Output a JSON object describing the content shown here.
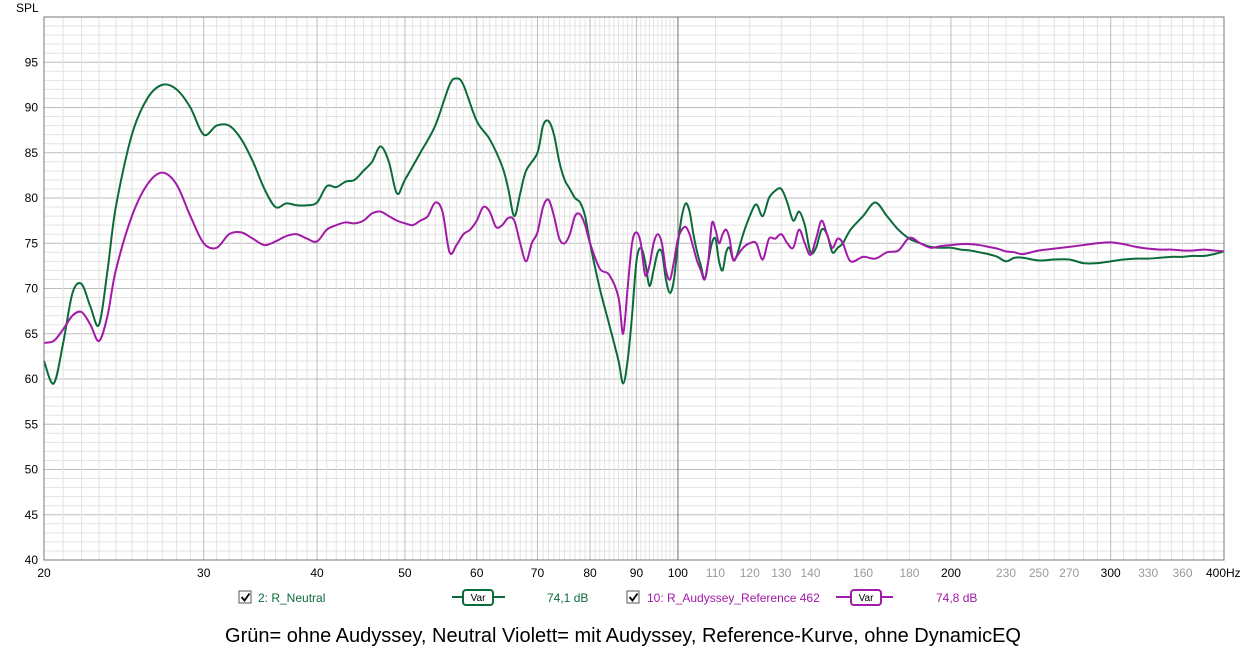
{
  "chart_data": {
    "type": "line",
    "ylabel": "SPL",
    "ylim": [
      40,
      100
    ],
    "y_ticks": [
      40,
      45,
      50,
      55,
      60,
      65,
      70,
      75,
      80,
      85,
      90,
      95
    ],
    "xlim": [
      20,
      400
    ],
    "x_scale": "log",
    "x_unit": "Hz",
    "x_ticks": [
      {
        "v": 20,
        "label": "20",
        "major": true
      },
      {
        "v": 30,
        "label": "30",
        "major": true
      },
      {
        "v": 40,
        "label": "40",
        "major": true
      },
      {
        "v": 50,
        "label": "50",
        "major": true
      },
      {
        "v": 60,
        "label": "60",
        "major": true
      },
      {
        "v": 70,
        "label": "70",
        "major": true
      },
      {
        "v": 80,
        "label": "80",
        "major": true
      },
      {
        "v": 90,
        "label": "90",
        "major": true
      },
      {
        "v": 100,
        "label": "100",
        "major": true
      },
      {
        "v": 110,
        "label": "110",
        "major": false
      },
      {
        "v": 120,
        "label": "120",
        "major": false
      },
      {
        "v": 130,
        "label": "130",
        "major": false
      },
      {
        "v": 140,
        "label": "140",
        "major": false
      },
      {
        "v": 160,
        "label": "160",
        "major": false
      },
      {
        "v": 180,
        "label": "180",
        "major": false
      },
      {
        "v": 200,
        "label": "200",
        "major": true
      },
      {
        "v": 230,
        "label": "230",
        "major": false
      },
      {
        "v": 250,
        "label": "250",
        "major": false
      },
      {
        "v": 270,
        "label": "270",
        "major": false
      },
      {
        "v": 300,
        "label": "300",
        "major": true
      },
      {
        "v": 330,
        "label": "330",
        "major": false
      },
      {
        "v": 360,
        "label": "360",
        "major": false
      },
      {
        "v": 400,
        "label": "400",
        "major": true
      }
    ],
    "cursor_x": 100,
    "grid": true,
    "series": [
      {
        "name": "2: R_Neutral",
        "color": "#0b6b3a",
        "points": [
          [
            20,
            62
          ],
          [
            20.5,
            59.5
          ],
          [
            21,
            64
          ],
          [
            21.5,
            69.5
          ],
          [
            22,
            70.5
          ],
          [
            22.5,
            68
          ],
          [
            23,
            66
          ],
          [
            23.5,
            72
          ],
          [
            24,
            79
          ],
          [
            25,
            87
          ],
          [
            26,
            91
          ],
          [
            27,
            92.5
          ],
          [
            28,
            92
          ],
          [
            29,
            90
          ],
          [
            30,
            87
          ],
          [
            31,
            88
          ],
          [
            32,
            88
          ],
          [
            33,
            86.5
          ],
          [
            34,
            84
          ],
          [
            35,
            81
          ],
          [
            36,
            79
          ],
          [
            37,
            79.4
          ],
          [
            38,
            79.2
          ],
          [
            39,
            79.2
          ],
          [
            40,
            79.5
          ],
          [
            41,
            81.3
          ],
          [
            42,
            81.2
          ],
          [
            43,
            81.8
          ],
          [
            44,
            82
          ],
          [
            45,
            83
          ],
          [
            46,
            84
          ],
          [
            47,
            85.7
          ],
          [
            48,
            84
          ],
          [
            49,
            80.5
          ],
          [
            50,
            82
          ],
          [
            52,
            85
          ],
          [
            54,
            88
          ],
          [
            56,
            92.5
          ],
          [
            57,
            93.2
          ],
          [
            58,
            92.5
          ],
          [
            60,
            88.5
          ],
          [
            62,
            86.5
          ],
          [
            64,
            83.5
          ],
          [
            65,
            81
          ],
          [
            66,
            78
          ],
          [
            67,
            80.5
          ],
          [
            68,
            83
          ],
          [
            70,
            85
          ],
          [
            71,
            88
          ],
          [
            72,
            88.5
          ],
          [
            73,
            87
          ],
          [
            74,
            84
          ],
          [
            75,
            82
          ],
          [
            76,
            81
          ],
          [
            77,
            80
          ],
          [
            78,
            79.5
          ],
          [
            79,
            78
          ],
          [
            80,
            75
          ],
          [
            82,
            70
          ],
          [
            84,
            66
          ],
          [
            86,
            62
          ],
          [
            87,
            59.5
          ],
          [
            88,
            62
          ],
          [
            89,
            67
          ],
          [
            90,
            73
          ],
          [
            91,
            74.5
          ],
          [
            92,
            73
          ],
          [
            93,
            70.3
          ],
          [
            94,
            72
          ],
          [
            95,
            74
          ],
          [
            96,
            74
          ],
          [
            97,
            71
          ],
          [
            98,
            69.5
          ],
          [
            99,
            71
          ],
          [
            100,
            75
          ],
          [
            101,
            78
          ],
          [
            102,
            79.4
          ],
          [
            103,
            78.5
          ],
          [
            104,
            76
          ],
          [
            105,
            74
          ],
          [
            106,
            72.5
          ],
          [
            107,
            71
          ],
          [
            108,
            73
          ],
          [
            109,
            75
          ],
          [
            110,
            75.5
          ],
          [
            111,
            73
          ],
          [
            112,
            72
          ],
          [
            113,
            74
          ],
          [
            114,
            74.5
          ],
          [
            115,
            73.2
          ],
          [
            116,
            73.5
          ],
          [
            118,
            76
          ],
          [
            120,
            78
          ],
          [
            122,
            79.3
          ],
          [
            124,
            78
          ],
          [
            126,
            80
          ],
          [
            128,
            80.8
          ],
          [
            130,
            81
          ],
          [
            132,
            79.5
          ],
          [
            134,
            77.5
          ],
          [
            136,
            78.5
          ],
          [
            138,
            77
          ],
          [
            140,
            74
          ],
          [
            142,
            74.5
          ],
          [
            144,
            76.5
          ],
          [
            146,
            76
          ],
          [
            148,
            74
          ],
          [
            150,
            74.5
          ],
          [
            152,
            75
          ],
          [
            155,
            76.5
          ],
          [
            160,
            78
          ],
          [
            165,
            79.5
          ],
          [
            170,
            78
          ],
          [
            175,
            76.5
          ],
          [
            180,
            75.5
          ],
          [
            185,
            75
          ],
          [
            190,
            74.6
          ],
          [
            195,
            74.5
          ],
          [
            200,
            74.5
          ],
          [
            205,
            74.3
          ],
          [
            210,
            74.2
          ],
          [
            215,
            74
          ],
          [
            220,
            73.8
          ],
          [
            225,
            73.5
          ],
          [
            230,
            73
          ],
          [
            235,
            73.4
          ],
          [
            240,
            73.4
          ],
          [
            250,
            73.1
          ],
          [
            260,
            73.2
          ],
          [
            270,
            73.2
          ],
          [
            280,
            72.8
          ],
          [
            290,
            72.8
          ],
          [
            300,
            73
          ],
          [
            310,
            73.2
          ],
          [
            320,
            73.3
          ],
          [
            330,
            73.3
          ],
          [
            340,
            73.4
          ],
          [
            350,
            73.5
          ],
          [
            360,
            73.5
          ],
          [
            370,
            73.6
          ],
          [
            380,
            73.6
          ],
          [
            390,
            73.8
          ],
          [
            400,
            74.1
          ]
        ]
      },
      {
        "name": "10: R_Audyssey_Reference 462",
        "color": "#a21aa8",
        "points": [
          [
            20,
            64
          ],
          [
            20.5,
            64.2
          ],
          [
            21,
            65.5
          ],
          [
            21.5,
            67
          ],
          [
            22,
            67.4
          ],
          [
            22.5,
            66
          ],
          [
            23,
            64.2
          ],
          [
            23.5,
            67
          ],
          [
            24,
            72
          ],
          [
            25,
            78
          ],
          [
            26,
            81.5
          ],
          [
            27,
            82.8
          ],
          [
            28,
            81.5
          ],
          [
            29,
            78
          ],
          [
            30,
            75
          ],
          [
            31,
            74.5
          ],
          [
            32,
            76
          ],
          [
            33,
            76.2
          ],
          [
            34,
            75.5
          ],
          [
            35,
            74.8
          ],
          [
            36,
            75.2
          ],
          [
            37,
            75.8
          ],
          [
            38,
            76
          ],
          [
            39,
            75.5
          ],
          [
            40,
            75.2
          ],
          [
            41,
            76.5
          ],
          [
            42,
            77
          ],
          [
            43,
            77.3
          ],
          [
            44,
            77.2
          ],
          [
            45,
            77.5
          ],
          [
            46,
            78.3
          ],
          [
            47,
            78.5
          ],
          [
            48,
            78
          ],
          [
            49,
            77.5
          ],
          [
            50,
            77.2
          ],
          [
            51,
            77
          ],
          [
            52,
            77.5
          ],
          [
            53,
            78
          ],
          [
            54,
            79.5
          ],
          [
            55,
            78.5
          ],
          [
            56,
            74
          ],
          [
            57,
            74.8
          ],
          [
            58,
            76
          ],
          [
            59,
            76.5
          ],
          [
            60,
            77.5
          ],
          [
            61,
            79
          ],
          [
            62,
            78.5
          ],
          [
            63,
            76.8
          ],
          [
            64,
            77
          ],
          [
            65,
            77.8
          ],
          [
            66,
            77.5
          ],
          [
            67,
            75
          ],
          [
            68,
            73
          ],
          [
            69,
            75
          ],
          [
            70,
            76.2
          ],
          [
            71,
            79
          ],
          [
            72,
            79.8
          ],
          [
            73,
            78
          ],
          [
            74,
            75.5
          ],
          [
            75,
            75
          ],
          [
            76,
            76
          ],
          [
            77,
            78
          ],
          [
            78,
            78.2
          ],
          [
            79,
            77
          ],
          [
            80,
            75
          ],
          [
            82,
            72.2
          ],
          [
            84,
            71.5
          ],
          [
            86,
            69
          ],
          [
            87,
            65
          ],
          [
            88,
            70
          ],
          [
            89,
            75
          ],
          [
            90,
            76.2
          ],
          [
            91,
            75
          ],
          [
            92,
            71.5
          ],
          [
            93,
            72.5
          ],
          [
            94,
            75
          ],
          [
            95,
            76
          ],
          [
            96,
            75
          ],
          [
            97,
            72
          ],
          [
            98,
            71
          ],
          [
            99,
            73
          ],
          [
            100,
            75.5
          ],
          [
            101,
            76.5
          ],
          [
            102,
            76.8
          ],
          [
            103,
            76
          ],
          [
            104,
            74.5
          ],
          [
            105,
            73
          ],
          [
            106,
            72
          ],
          [
            107,
            71
          ],
          [
            108,
            73
          ],
          [
            109,
            77.2
          ],
          [
            110,
            76.5
          ],
          [
            111,
            75
          ],
          [
            112,
            76
          ],
          [
            113,
            76.5
          ],
          [
            114,
            75.5
          ],
          [
            115,
            73.2
          ],
          [
            116,
            73.5
          ],
          [
            118,
            74.5
          ],
          [
            120,
            75
          ],
          [
            122,
            75
          ],
          [
            124,
            73.2
          ],
          [
            126,
            75.5
          ],
          [
            128,
            75.5
          ],
          [
            130,
            76
          ],
          [
            132,
            75
          ],
          [
            134,
            74.5
          ],
          [
            136,
            76.5
          ],
          [
            138,
            75
          ],
          [
            140,
            73.7
          ],
          [
            142,
            75.5
          ],
          [
            144,
            77.5
          ],
          [
            146,
            76
          ],
          [
            148,
            74.5
          ],
          [
            150,
            75.5
          ],
          [
            152,
            75
          ],
          [
            155,
            73
          ],
          [
            160,
            73.5
          ],
          [
            165,
            73.3
          ],
          [
            170,
            74
          ],
          [
            175,
            74.2
          ],
          [
            180,
            75.6
          ],
          [
            185,
            75
          ],
          [
            190,
            74.5
          ],
          [
            195,
            74.7
          ],
          [
            200,
            74.8
          ],
          [
            205,
            74.9
          ],
          [
            210,
            74.9
          ],
          [
            215,
            74.8
          ],
          [
            220,
            74.6
          ],
          [
            225,
            74.4
          ],
          [
            230,
            74.1
          ],
          [
            235,
            74
          ],
          [
            240,
            73.8
          ],
          [
            250,
            74.2
          ],
          [
            260,
            74.4
          ],
          [
            270,
            74.6
          ],
          [
            280,
            74.8
          ],
          [
            290,
            75
          ],
          [
            300,
            75.1
          ],
          [
            310,
            74.9
          ],
          [
            320,
            74.6
          ],
          [
            330,
            74.4
          ],
          [
            340,
            74.3
          ],
          [
            350,
            74.3
          ],
          [
            360,
            74.2
          ],
          [
            370,
            74.2
          ],
          [
            380,
            74.3
          ],
          [
            390,
            74.2
          ],
          [
            400,
            74.1
          ]
        ]
      }
    ]
  },
  "legend": [
    {
      "checkbox": true,
      "name": "2: R_Neutral",
      "var_label": "Var",
      "value": "74,1 dB",
      "color": "#0b6b3a"
    },
    {
      "checkbox": true,
      "name": "10: R_Audyssey_Reference 462",
      "var_label": "Var",
      "value": "74,8 dB",
      "color": "#a21aa8"
    }
  ],
  "caption": "Grün= ohne Audyssey, Neutral Violett= mit Audyssey, Reference-Kurve, ohne DynamicEQ"
}
